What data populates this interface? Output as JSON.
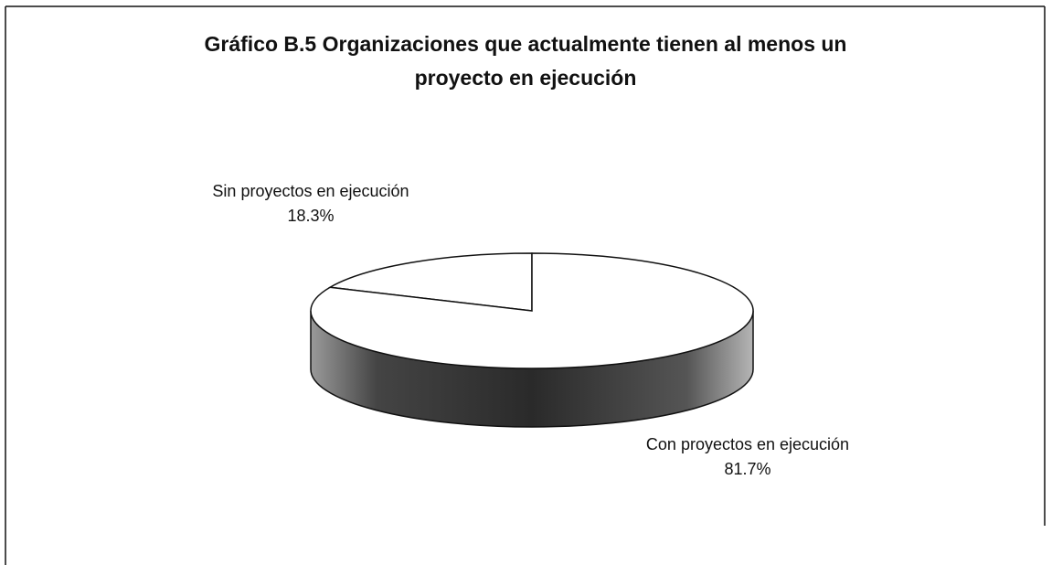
{
  "chart_data": {
    "type": "pie3d",
    "title": "Gráfico B.5 Organizaciones que actualmente tienen al menos un proyecto en ejecución",
    "categories": [
      "Sin proyectos en ejecución",
      "Con proyectos en ejecución"
    ],
    "values": [
      18.3,
      81.7
    ],
    "value_labels": [
      "18.3%",
      "81.7%"
    ],
    "colors": [
      "#ffffff",
      "#ffffff"
    ]
  }
}
